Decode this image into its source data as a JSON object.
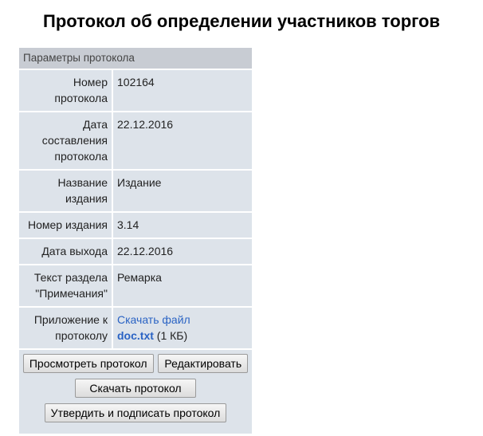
{
  "page_title": "Протокол об определении участников торгов",
  "panel_title": "Параметры протокола",
  "rows": [
    {
      "label": "Номер протокола",
      "value": "102164"
    },
    {
      "label": "Дата составления протокола",
      "value": "22.12.2016"
    },
    {
      "label": "Название издания",
      "value": "Издание"
    },
    {
      "label": "Номер издания",
      "value": "3.14"
    },
    {
      "label": "Дата выхода",
      "value": "22.12.2016"
    },
    {
      "label": "Текст раздела \"Примечания\"",
      "value": "Ремарка"
    }
  ],
  "attachment": {
    "label": "Приложение к протоколу",
    "download_link": "Скачать файл",
    "file_name": "doc.txt",
    "file_size": "(1 КБ)"
  },
  "buttons": {
    "view": "Просмотреть протокол",
    "edit": "Редактировать",
    "download": "Скачать протокол",
    "approve": "Утвердить и подписать протокол"
  }
}
